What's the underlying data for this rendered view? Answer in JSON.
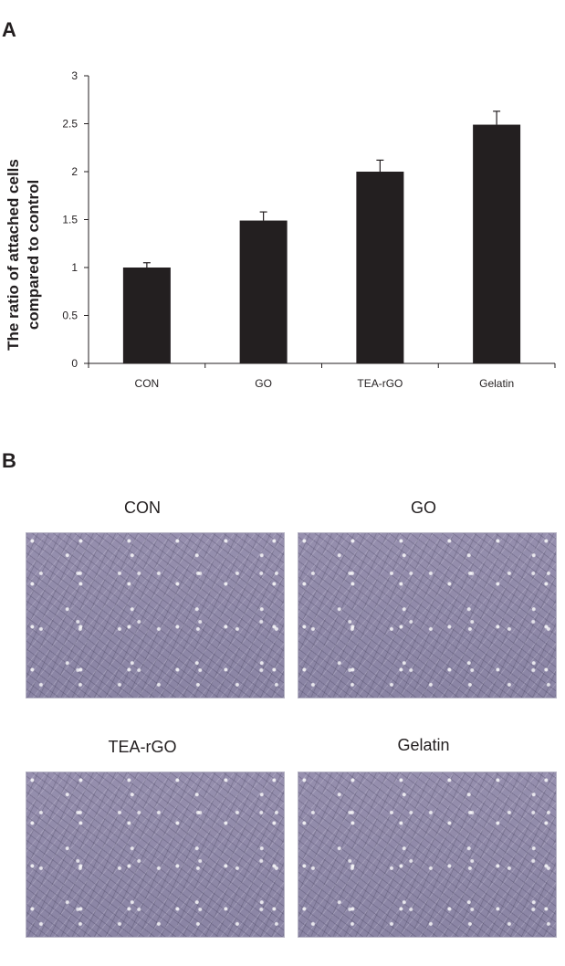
{
  "panel_a_label": "A",
  "panel_b_label": "B",
  "chart_data": {
    "type": "bar",
    "categories": [
      "CON",
      "GO",
      "TEA-rGO",
      "Gelatin"
    ],
    "values": [
      1.0,
      1.49,
      2.0,
      2.49
    ],
    "errors": [
      0.05,
      0.09,
      0.12,
      0.14
    ],
    "title": "",
    "xlabel": "",
    "ylabel_line1": "The ratio of attached cells",
    "ylabel_line2": "compared to control",
    "ylim": [
      0,
      3
    ],
    "yticks": [
      "0",
      "0.5",
      "1",
      "1.5",
      "2",
      "2.5",
      "3"
    ],
    "ytick_values": [
      0,
      0.5,
      1,
      1.5,
      2,
      2.5,
      3
    ],
    "grid": false,
    "bar_color": "#231f20"
  },
  "images": [
    {
      "title": "CON"
    },
    {
      "title": "GO"
    },
    {
      "title": "TEA-rGO"
    },
    {
      "title": "Gelatin"
    }
  ]
}
